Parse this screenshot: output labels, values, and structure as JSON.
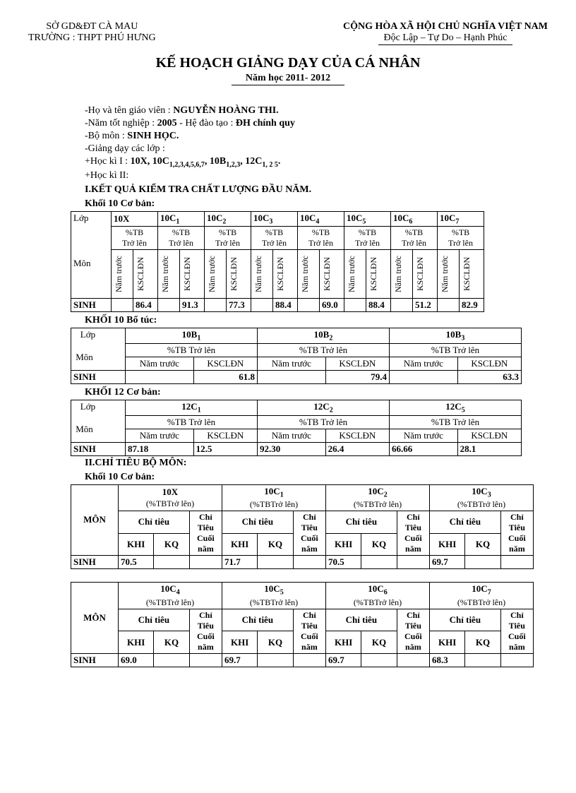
{
  "header": {
    "left_line1": "SỞ GD&ĐT CÀ MAU",
    "left_line2": "TRƯỜNG   : THPT PHÚ HƯNG",
    "right_line1": "CỘNG HÒA XÃ HỘI CHỦ NGHĨA VIỆT NAM",
    "right_line2": "Độc Lập – Tự Do – Hạnh Phúc"
  },
  "title": "KẾ HOẠCH GIẢNG DẠY CỦA CÁ NHÂN",
  "subtitle": "Năm học 2011- 2012",
  "info": {
    "name_label": "-Họ và tên giáo viên :",
    "name": " NGUYỄN HOÀNG THI.",
    "year_label": "-Năm tốt nghiệp :",
    "year": " 2005",
    "system_label": "  - Hệ đào tạo :",
    "system": " ĐH chính quy",
    "dept_label": "-Bộ môn :",
    "dept": " SINH HỌC.",
    "teach_label": "-Giảng dạy các lớp :",
    "hk1_label": "+Học kì I :",
    "hk1": "  10X, 10C",
    "hk1_sub": "1,2,3,4,5,6,7",
    "hk1_b": ", 10B",
    "hk1_b_sub": "1,2,3",
    "hk1_c": ", 12C",
    "hk1_c_sub": "1, 2 5",
    "hk1_end": ".",
    "hk2_label": "+Học kì II:"
  },
  "sec1": "I.KẾT QUẢ KIỂM TRA CHẤT LƯỢNG ĐẦU NĂM.",
  "khoi10cb": "Khối 10 Cơ bản:",
  "t1": {
    "lop": "Lớp",
    "mon": "Môn",
    "ptb": "%TB",
    "trolen": "Trở lên",
    "namtruoc": "Năm trước",
    "kscldn": "KSCLĐN",
    "sinh": "SINH",
    "classes": [
      "10X",
      "10C",
      "10C",
      "10C",
      "10C",
      "10C",
      "10C",
      "10C"
    ],
    "subs": [
      "",
      "1",
      "2",
      "3",
      "4",
      "5",
      "6",
      "7"
    ],
    "vals": [
      "86.4",
      "91.3",
      "77.3",
      "88.4",
      "69.0",
      "88.4",
      "51.2",
      "82.9"
    ]
  },
  "khoi10bt": "KHỐI 10 Bổ túc:",
  "t2": {
    "ptbtrolen": "%TB Trở lên",
    "classes": [
      "10B",
      "10B",
      "10B"
    ],
    "subs": [
      "1",
      "2",
      "3"
    ],
    "nt": "Năm trước",
    "ks": "KSCLĐN",
    "vals": [
      "61.8",
      "79.4",
      "63.3"
    ]
  },
  "khoi12cb": "KHỐI 12 Cơ bản:",
  "t3": {
    "classes": [
      "12C",
      "12C",
      "12C"
    ],
    "subs": [
      "1",
      "2",
      "5"
    ],
    "nt_vals": [
      "87.18",
      "92.30",
      "66.66"
    ],
    "ks_vals": [
      "12.5",
      "26.4",
      "28.1"
    ]
  },
  "sec2": "II.CHỈ TIÊU BỘ MÔN:",
  "khoi10cb2": "Khối 10 Cơ bản:",
  "t4a": {
    "mon": "MÔN",
    "ptbtrolen": "(%TBTrở lên)",
    "chitieu": "Chỉ tiêu",
    "chitieucuoinam": "Chỉ Tiêu Cuối năm",
    "khi": "KHI",
    "kq": "KQ",
    "classes": [
      "10X",
      "10C",
      "10C",
      "10C"
    ],
    "subs": [
      "",
      "1",
      "2",
      "3"
    ],
    "vals": [
      "70.5",
      "71.7",
      "70.5",
      "69.7"
    ]
  },
  "t4b": {
    "classes": [
      "10C",
      "10C",
      "10C",
      "10C"
    ],
    "subs": [
      "4",
      "5",
      "6",
      "7"
    ],
    "vals": [
      "69.0",
      "69.7",
      "69.7",
      "68.3"
    ]
  }
}
